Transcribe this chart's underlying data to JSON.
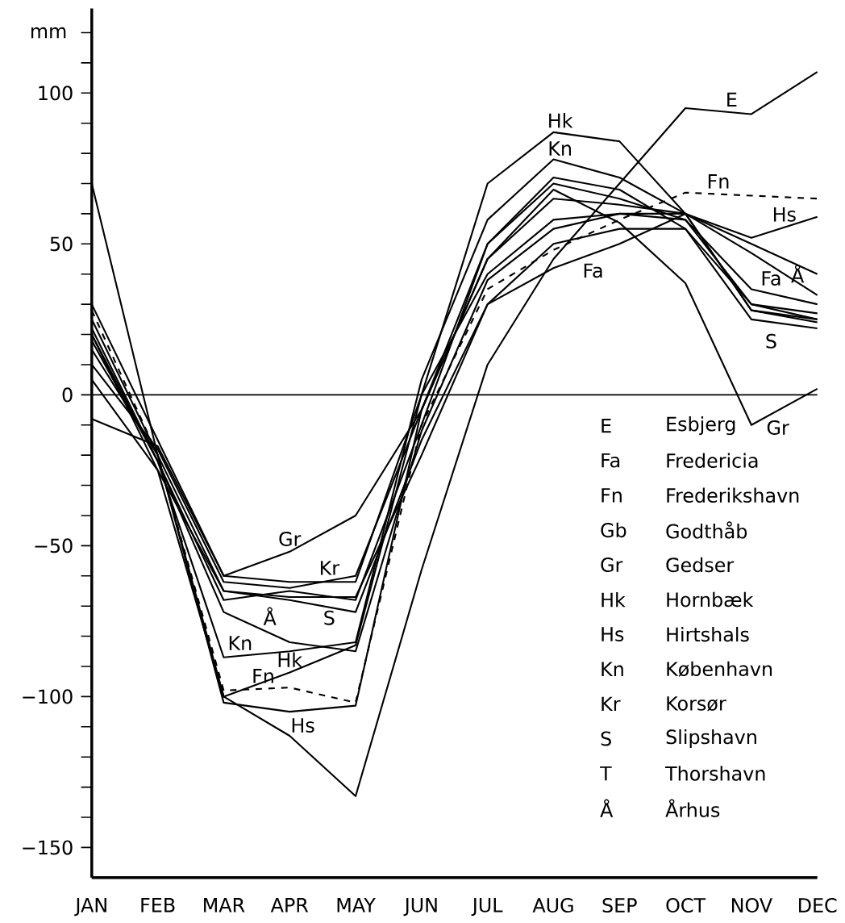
{
  "chart_data": {
    "type": "line",
    "ylabel": "mm",
    "categories": [
      "JAN",
      "FEB",
      "MAR",
      "APR",
      "MAY",
      "JUN",
      "JUL",
      "AUG",
      "SEP",
      "OCT",
      "NOV",
      "DEC"
    ],
    "ylim": [
      -160,
      128
    ],
    "yticks": [
      {
        "value": -150,
        "label": "−150"
      },
      {
        "value": -140,
        "label": null
      },
      {
        "value": -130,
        "label": null
      },
      {
        "value": -120,
        "label": null
      },
      {
        "value": -110,
        "label": null
      },
      {
        "value": -100,
        "label": "−100"
      },
      {
        "value": -90,
        "label": null
      },
      {
        "value": -80,
        "label": null
      },
      {
        "value": -70,
        "label": null
      },
      {
        "value": -60,
        "label": null
      },
      {
        "value": -50,
        "label": "−50"
      },
      {
        "value": -40,
        "label": null
      },
      {
        "value": -30,
        "label": null
      },
      {
        "value": -20,
        "label": null
      },
      {
        "value": -10,
        "label": null
      },
      {
        "value": 0,
        "label": "0"
      },
      {
        "value": 10,
        "label": null
      },
      {
        "value": 20,
        "label": null
      },
      {
        "value": 30,
        "label": null
      },
      {
        "value": 40,
        "label": null
      },
      {
        "value": 50,
        "label": "50"
      },
      {
        "value": 60,
        "label": null
      },
      {
        "value": 70,
        "label": null
      },
      {
        "value": 80,
        "label": null
      },
      {
        "value": 90,
        "label": null
      },
      {
        "value": 100,
        "label": "100"
      },
      {
        "value": 110,
        "label": null
      },
      {
        "value": 120,
        "label": null
      }
    ],
    "legend": false,
    "grid": false,
    "ref_lines": [
      {
        "axis": "y",
        "value": 0,
        "color": "#000000"
      }
    ],
    "series": [
      {
        "name": "E",
        "color": "#000000",
        "values": [
          70,
          -20,
          -100,
          -113,
          -133,
          -58,
          10,
          45,
          70,
          95,
          93,
          107
        ]
      },
      {
        "name": "Fa",
        "color": "#000000",
        "values": [
          15,
          -20,
          -65,
          -67,
          -67,
          -20,
          30,
          42,
          50,
          60,
          47,
          33
        ]
      },
      {
        "name": "Fn",
        "color": "#000000",
        "line_style": "dashed",
        "values": [
          28,
          -20,
          -98,
          -97,
          -102,
          -10,
          35,
          48,
          58,
          67,
          66,
          65
        ]
      },
      {
        "color": "#000000",
        "values": [
          5,
          -25,
          -65,
          -68,
          -72,
          -15,
          30,
          50,
          55,
          55,
          30,
          25
        ]
      },
      {
        "name": "Gr",
        "color": "#000000",
        "values": [
          -8,
          -17,
          -60,
          -52,
          -40,
          -5,
          45,
          68,
          57,
          37,
          -10,
          2
        ]
      },
      {
        "name": "Hk",
        "color": "#000000",
        "values": [
          20,
          -25,
          -100,
          -92,
          -83,
          0,
          70,
          87,
          84,
          60,
          28,
          25
        ]
      },
      {
        "name": "Hs",
        "color": "#000000",
        "values": [
          25,
          -20,
          -102,
          -105,
          -103,
          -5,
          45,
          65,
          63,
          60,
          52,
          59
        ]
      },
      {
        "name": "Kn",
        "color": "#000000",
        "values": [
          22,
          -22,
          -87,
          -85,
          -82,
          5,
          58,
          78,
          72,
          60,
          28,
          24
        ]
      },
      {
        "name": "Kr",
        "color": "#000000",
        "values": [
          10,
          -18,
          -62,
          -64,
          -60,
          -5,
          50,
          72,
          68,
          55,
          25,
          22
        ]
      },
      {
        "name": "S",
        "color": "#000000",
        "values": [
          20,
          -22,
          -68,
          -65,
          -68,
          -10,
          50,
          70,
          65,
          58,
          30,
          27
        ]
      },
      {
        "color": "#000000",
        "values": [
          30,
          -15,
          -60,
          -62,
          -62,
          0,
          40,
          58,
          60,
          58,
          35,
          30
        ]
      },
      {
        "name": "Å",
        "color": "#000000",
        "values": [
          18,
          -22,
          -72,
          -82,
          -85,
          -12,
          38,
          55,
          60,
          60,
          50,
          40
        ]
      }
    ],
    "annotations": [
      "E",
      "Esbjerg",
      "Fa",
      "Fredericia",
      "Fn",
      "Frederikshavn",
      "Gb",
      "Godthåb",
      "Gr",
      "Gedser",
      "Hk",
      "Hornbæk",
      "Hs",
      "Hirtshals",
      "Kn",
      "København",
      "Kr",
      "Korsør",
      "S",
      "Slipshavn",
      "T",
      "Thorshavn",
      "Å",
      "Århus"
    ]
  }
}
